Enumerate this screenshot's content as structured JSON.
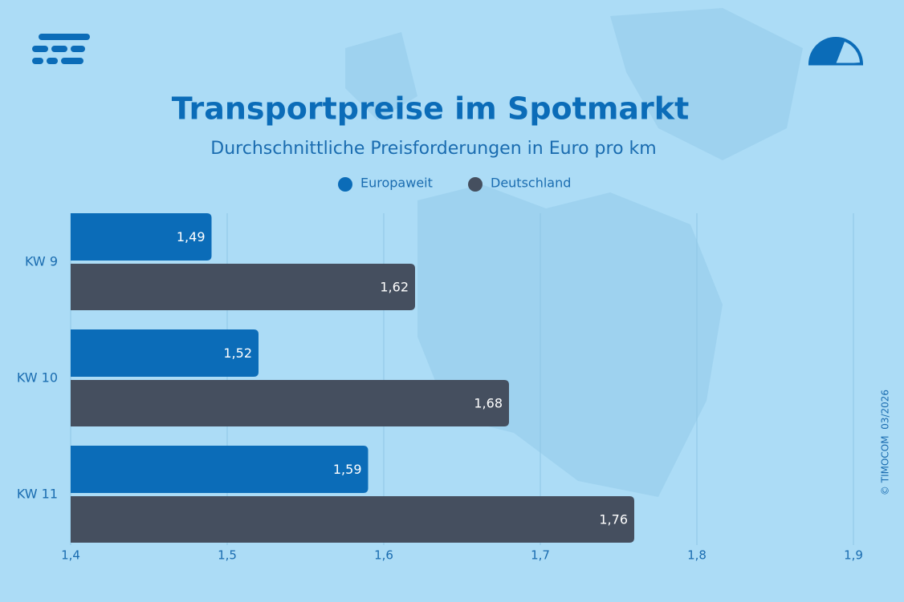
{
  "chart_data": {
    "type": "bar",
    "orientation": "horizontal",
    "title": "Transportpreise im Spotmarkt",
    "subtitle": "Durchschnittliche Preisforderungen in Euro pro km",
    "categories": [
      "KW 9",
      "KW 10",
      "KW 11"
    ],
    "series": [
      {
        "name": "Europaweit",
        "color": "#0b6cb8",
        "values": [
          1.49,
          1.52,
          1.59
        ],
        "value_labels": [
          "1,49",
          "1,52",
          "1,59"
        ]
      },
      {
        "name": "Deutschland",
        "color": "#454f5f",
        "values": [
          1.62,
          1.68,
          1.76
        ],
        "value_labels": [
          "1,62",
          "1,68",
          "1,76"
        ]
      }
    ],
    "xlim": [
      1.4,
      1.9
    ],
    "xticks": [
      {
        "value": 1.4,
        "label": "1,4"
      },
      {
        "value": 1.5,
        "label": "1,5"
      },
      {
        "value": 1.6,
        "label": "1,6"
      },
      {
        "value": 1.7,
        "label": "1,7"
      },
      {
        "value": 1.8,
        "label": "1,8"
      },
      {
        "value": 1.9,
        "label": "1,9"
      }
    ],
    "grid": true,
    "annotation": "© TIMOCOM  03/2026"
  }
}
